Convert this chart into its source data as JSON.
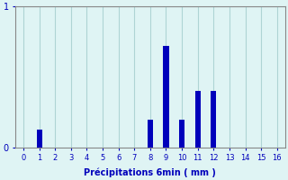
{
  "categories": [
    0,
    1,
    2,
    3,
    4,
    5,
    6,
    7,
    8,
    9,
    10,
    11,
    12,
    13,
    14,
    15,
    16
  ],
  "values": [
    0,
    0.13,
    0,
    0,
    0,
    0,
    0,
    0,
    0.2,
    0.72,
    0.2,
    0.4,
    0.4,
    0,
    0,
    0,
    0
  ],
  "bar_color": "#0000bb",
  "background_color": "#dff4f4",
  "grid_color": "#aed4d4",
  "xlabel": "Précipitations 6min ( mm )",
  "ylim": [
    0,
    1.0
  ],
  "xlim": [
    -0.5,
    16.5
  ],
  "yticks": [
    0,
    1
  ],
  "xticks": [
    0,
    1,
    2,
    3,
    4,
    5,
    6,
    7,
    8,
    9,
    10,
    11,
    12,
    13,
    14,
    15,
    16
  ],
  "bar_width": 0.35
}
